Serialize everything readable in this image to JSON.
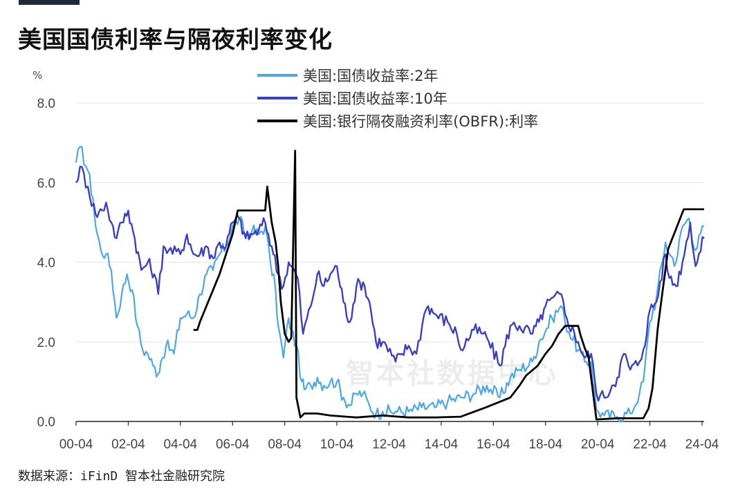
{
  "title": "美国国债利率与隔夜利率变化",
  "unit_label": "%",
  "source": "数据来源：iFinD 智本社金融研究院",
  "watermark": "智本社数据中心",
  "colors": {
    "yield_2y": "#4aa8e8",
    "yield_10y": "#3a3fc4",
    "obfr": "#000000",
    "grid": "#e6e6e6",
    "axis": "#222222"
  },
  "chart_data": {
    "type": "line",
    "title": "美国国债利率与隔夜利率变化",
    "ylabel": "%",
    "xlabel": "",
    "ylim": [
      0,
      8
    ],
    "y_ticks": [
      "0.0",
      "2.0",
      "4.0",
      "6.0",
      "8.0"
    ],
    "x_ticks": [
      "00-04",
      "02-04",
      "04-04",
      "06-04",
      "08-04",
      "10-04",
      "12-04",
      "14-04",
      "16-04",
      "18-04",
      "20-04",
      "22-04",
      "24-04"
    ],
    "x_range": [
      2000.25,
      2024.33
    ],
    "grid": "horizontal",
    "legend_position": "top-center",
    "series": [
      {
        "name": "美国:国债收益率:2年",
        "points": [
          [
            2000.25,
            6.5
          ],
          [
            2000.4,
            6.9
          ],
          [
            2000.7,
            6.3
          ],
          [
            2000.9,
            5.6
          ],
          [
            2001.0,
            4.9
          ],
          [
            2001.2,
            4.3
          ],
          [
            2001.4,
            4.2
          ],
          [
            2001.6,
            3.8
          ],
          [
            2001.8,
            2.6
          ],
          [
            2002.0,
            3.2
          ],
          [
            2002.2,
            3.7
          ],
          [
            2002.4,
            3.3
          ],
          [
            2002.6,
            2.4
          ],
          [
            2002.8,
            1.8
          ],
          [
            2003.0,
            1.7
          ],
          [
            2003.2,
            1.4
          ],
          [
            2003.4,
            1.2
          ],
          [
            2003.5,
            1.5
          ],
          [
            2003.7,
            1.9
          ],
          [
            2003.9,
            1.8
          ],
          [
            2004.0,
            1.7
          ],
          [
            2004.25,
            2.6
          ],
          [
            2004.5,
            2.7
          ],
          [
            2004.75,
            2.6
          ],
          [
            2005.0,
            3.2
          ],
          [
            2005.25,
            3.7
          ],
          [
            2005.5,
            3.8
          ],
          [
            2005.75,
            4.2
          ],
          [
            2006.0,
            4.4
          ],
          [
            2006.25,
            4.9
          ],
          [
            2006.5,
            5.1
          ],
          [
            2006.75,
            4.7
          ],
          [
            2007.0,
            4.8
          ],
          [
            2007.25,
            4.7
          ],
          [
            2007.5,
            4.9
          ],
          [
            2007.7,
            4.0
          ],
          [
            2007.9,
            3.3
          ],
          [
            2008.0,
            2.4
          ],
          [
            2008.2,
            1.6
          ],
          [
            2008.4,
            2.6
          ],
          [
            2008.5,
            2.3
          ],
          [
            2008.7,
            1.9
          ],
          [
            2008.9,
            1.0
          ],
          [
            2009.0,
            0.8
          ],
          [
            2009.25,
            0.9
          ],
          [
            2009.5,
            1.1
          ],
          [
            2009.75,
            0.9
          ],
          [
            2010.0,
            1.0
          ],
          [
            2010.25,
            1.0
          ],
          [
            2010.5,
            0.6
          ],
          [
            2010.75,
            0.4
          ],
          [
            2011.0,
            0.7
          ],
          [
            2011.25,
            0.7
          ],
          [
            2011.5,
            0.4
          ],
          [
            2011.75,
            0.2
          ],
          [
            2012.0,
            0.25
          ],
          [
            2012.5,
            0.25
          ],
          [
            2013.0,
            0.25
          ],
          [
            2013.5,
            0.35
          ],
          [
            2014.0,
            0.35
          ],
          [
            2014.5,
            0.5
          ],
          [
            2015.0,
            0.6
          ],
          [
            2015.5,
            0.7
          ],
          [
            2016.0,
            0.9
          ],
          [
            2016.5,
            0.6
          ],
          [
            2016.9,
            1.1
          ],
          [
            2017.25,
            1.3
          ],
          [
            2017.75,
            1.5
          ],
          [
            2018.0,
            2.0
          ],
          [
            2018.5,
            2.6
          ],
          [
            2018.85,
            2.9
          ],
          [
            2019.0,
            2.5
          ],
          [
            2019.5,
            1.8
          ],
          [
            2019.75,
            1.5
          ],
          [
            2020.0,
            1.5
          ],
          [
            2020.2,
            0.3
          ],
          [
            2020.5,
            0.15
          ],
          [
            2021.0,
            0.12
          ],
          [
            2021.5,
            0.2
          ],
          [
            2021.85,
            0.7
          ],
          [
            2022.0,
            1.0
          ],
          [
            2022.25,
            2.5
          ],
          [
            2022.5,
            3.1
          ],
          [
            2022.85,
            4.5
          ],
          [
            2023.0,
            4.2
          ],
          [
            2023.25,
            4.0
          ],
          [
            2023.5,
            4.9
          ],
          [
            2023.75,
            5.1
          ],
          [
            2024.0,
            4.3
          ],
          [
            2024.33,
            4.9
          ]
        ]
      },
      {
        "name": "美国:国债收益率:10年",
        "points": [
          [
            2000.25,
            6.0
          ],
          [
            2000.4,
            6.4
          ],
          [
            2000.7,
            5.9
          ],
          [
            2001.0,
            5.2
          ],
          [
            2001.25,
            5.3
          ],
          [
            2001.4,
            5.5
          ],
          [
            2001.6,
            5.0
          ],
          [
            2001.8,
            4.6
          ],
          [
            2002.0,
            5.0
          ],
          [
            2002.25,
            5.3
          ],
          [
            2002.5,
            4.6
          ],
          [
            2002.75,
            3.8
          ],
          [
            2003.0,
            4.0
          ],
          [
            2003.25,
            3.7
          ],
          [
            2003.4,
            3.2
          ],
          [
            2003.6,
            4.4
          ],
          [
            2003.8,
            4.3
          ],
          [
            2004.25,
            4.2
          ],
          [
            2004.5,
            4.7
          ],
          [
            2004.75,
            4.2
          ],
          [
            2005.0,
            4.2
          ],
          [
            2005.25,
            4.4
          ],
          [
            2005.5,
            4.1
          ],
          [
            2005.75,
            4.5
          ],
          [
            2006.0,
            4.4
          ],
          [
            2006.25,
            5.0
          ],
          [
            2006.5,
            5.1
          ],
          [
            2006.75,
            4.6
          ],
          [
            2007.0,
            4.7
          ],
          [
            2007.25,
            4.8
          ],
          [
            2007.5,
            5.0
          ],
          [
            2007.75,
            4.4
          ],
          [
            2008.0,
            3.7
          ],
          [
            2008.2,
            3.4
          ],
          [
            2008.4,
            4.0
          ],
          [
            2008.5,
            3.9
          ],
          [
            2008.75,
            3.6
          ],
          [
            2008.95,
            2.2
          ],
          [
            2009.25,
            2.9
          ],
          [
            2009.5,
            3.7
          ],
          [
            2009.75,
            3.4
          ],
          [
            2010.0,
            3.7
          ],
          [
            2010.25,
            3.9
          ],
          [
            2010.5,
            3.0
          ],
          [
            2010.75,
            2.5
          ],
          [
            2011.0,
            3.4
          ],
          [
            2011.25,
            3.5
          ],
          [
            2011.5,
            3.0
          ],
          [
            2011.75,
            2.0
          ],
          [
            2012.0,
            2.0
          ],
          [
            2012.5,
            1.5
          ],
          [
            2012.75,
            1.7
          ],
          [
            2013.0,
            1.9
          ],
          [
            2013.3,
            1.7
          ],
          [
            2013.6,
            2.7
          ],
          [
            2013.75,
            2.9
          ],
          [
            2014.0,
            2.7
          ],
          [
            2014.5,
            2.5
          ],
          [
            2014.85,
            2.2
          ],
          [
            2015.0,
            1.8
          ],
          [
            2015.5,
            2.3
          ],
          [
            2015.85,
            2.2
          ],
          [
            2016.0,
            2.1
          ],
          [
            2016.5,
            1.4
          ],
          [
            2016.9,
            2.4
          ],
          [
            2017.25,
            2.4
          ],
          [
            2017.75,
            2.2
          ],
          [
            2018.0,
            2.5
          ],
          [
            2018.25,
            2.9
          ],
          [
            2018.85,
            3.2
          ],
          [
            2019.0,
            2.7
          ],
          [
            2019.5,
            2.0
          ],
          [
            2019.75,
            1.6
          ],
          [
            2020.0,
            1.7
          ],
          [
            2020.2,
            0.7
          ],
          [
            2020.5,
            0.6
          ],
          [
            2020.8,
            0.9
          ],
          [
            2021.0,
            1.1
          ],
          [
            2021.25,
            1.7
          ],
          [
            2021.5,
            1.3
          ],
          [
            2021.85,
            1.5
          ],
          [
            2022.0,
            1.8
          ],
          [
            2022.25,
            2.8
          ],
          [
            2022.5,
            3.0
          ],
          [
            2022.85,
            4.2
          ],
          [
            2023.0,
            3.6
          ],
          [
            2023.25,
            3.4
          ],
          [
            2023.5,
            4.0
          ],
          [
            2023.8,
            5.0
          ],
          [
            2024.0,
            3.9
          ],
          [
            2024.33,
            4.6
          ]
        ]
      },
      {
        "name": "美国:银行隔夜融资利率(OBFR):利率",
        "points": [
          [
            2004.75,
            2.3
          ],
          [
            2004.9,
            2.3
          ],
          [
            2005.0,
            2.5
          ],
          [
            2005.25,
            2.9
          ],
          [
            2005.5,
            3.3
          ],
          [
            2005.75,
            3.7
          ],
          [
            2006.0,
            4.2
          ],
          [
            2006.25,
            4.7
          ],
          [
            2006.45,
            5.3
          ],
          [
            2007.0,
            5.3
          ],
          [
            2007.5,
            5.3
          ],
          [
            2007.58,
            5.9
          ],
          [
            2007.75,
            5.0
          ],
          [
            2007.9,
            4.5
          ],
          [
            2008.0,
            3.9
          ],
          [
            2008.1,
            3.0
          ],
          [
            2008.25,
            2.2
          ],
          [
            2008.4,
            2.0
          ],
          [
            2008.5,
            2.1
          ],
          [
            2008.65,
            6.8
          ],
          [
            2008.7,
            0.6
          ],
          [
            2008.85,
            0.1
          ],
          [
            2009.0,
            0.2
          ],
          [
            2009.5,
            0.2
          ],
          [
            2010.0,
            0.15
          ],
          [
            2011.0,
            0.1
          ],
          [
            2012.0,
            0.15
          ],
          [
            2013.0,
            0.1
          ],
          [
            2014.0,
            0.1
          ],
          [
            2015.0,
            0.12
          ],
          [
            2015.95,
            0.35
          ],
          [
            2016.9,
            0.6
          ],
          [
            2017.25,
            0.9
          ],
          [
            2017.5,
            1.15
          ],
          [
            2017.95,
            1.4
          ],
          [
            2018.25,
            1.7
          ],
          [
            2018.5,
            1.9
          ],
          [
            2018.75,
            2.2
          ],
          [
            2019.0,
            2.4
          ],
          [
            2019.5,
            2.4
          ],
          [
            2019.6,
            2.15
          ],
          [
            2019.75,
            1.85
          ],
          [
            2019.9,
            1.6
          ],
          [
            2020.2,
            0.05
          ],
          [
            2021.0,
            0.08
          ],
          [
            2022.0,
            0.08
          ],
          [
            2022.2,
            0.33
          ],
          [
            2022.35,
            0.83
          ],
          [
            2022.45,
            1.58
          ],
          [
            2022.55,
            2.33
          ],
          [
            2022.7,
            3.08
          ],
          [
            2022.85,
            3.83
          ],
          [
            2022.95,
            4.33
          ],
          [
            2023.1,
            4.58
          ],
          [
            2023.25,
            4.83
          ],
          [
            2023.4,
            5.08
          ],
          [
            2023.55,
            5.33
          ],
          [
            2024.33,
            5.33
          ]
        ]
      }
    ]
  }
}
